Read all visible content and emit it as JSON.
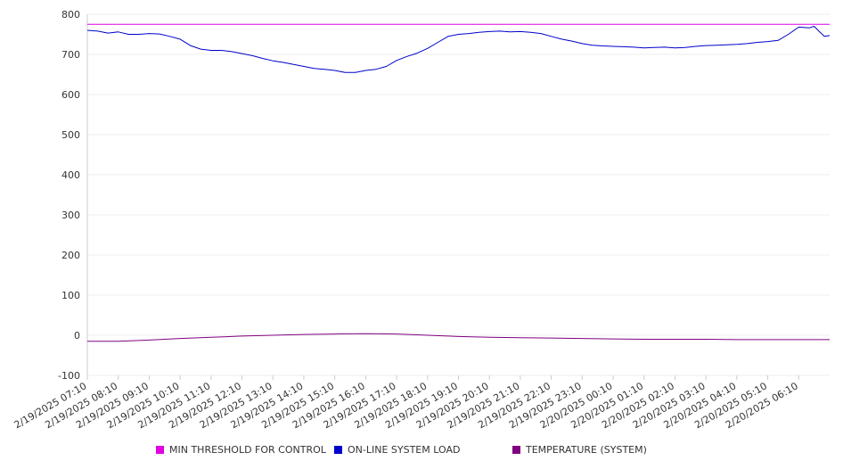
{
  "chart_data": {
    "type": "line",
    "ylim": [
      -100,
      800
    ],
    "y_ticks": [
      800,
      700,
      600,
      500,
      400,
      300,
      200,
      100,
      0,
      -100
    ],
    "y_tick_labels": [
      "800",
      "700",
      "600",
      "500",
      "400",
      "300",
      "200",
      "100",
      "0",
      "-100"
    ],
    "x_categories": [
      "2/19/2025 07:10",
      "2/19/2025 08:10",
      "2/19/2025 09:10",
      "2/19/2025 10:10",
      "2/19/2025 11:10",
      "2/19/2025 12:10",
      "2/19/2025 13:10",
      "2/19/2025 14:10",
      "2/19/2025 15:10",
      "2/19/2025 16:10",
      "2/19/2025 17:10",
      "2/19/2025 18:10",
      "2/19/2025 19:10",
      "2/19/2025 20:10",
      "2/19/2025 21:10",
      "2/19/2025 22:10",
      "2/19/2025 23:10",
      "2/20/2025 00:10",
      "2/20/2025 01:10",
      "2/20/2025 02:10",
      "2/20/2025 03:10",
      "2/20/2025 04:10",
      "2/20/2025 05:10",
      "2/20/2025 06:10"
    ],
    "x_end": "2/20/2025 07:10",
    "grid": "horizontal",
    "legend_position": "bottom",
    "series": [
      {
        "name": "MIN THRESHOLD FOR CONTROL",
        "color": "#e000e0",
        "points": [
          [
            "2/19/2025 07:10",
            775
          ],
          [
            "2/20/2025 07:10",
            775
          ]
        ]
      },
      {
        "name": "ON-LINE SYSTEM LOAD",
        "color": "#0000cc",
        "points": [
          [
            "2/19/2025 07:10",
            760
          ],
          [
            "2/19/2025 07:30",
            758
          ],
          [
            "2/19/2025 07:50",
            753
          ],
          [
            "2/19/2025 08:10",
            756
          ],
          [
            "2/19/2025 08:30",
            750
          ],
          [
            "2/19/2025 08:50",
            750
          ],
          [
            "2/19/2025 09:10",
            752
          ],
          [
            "2/19/2025 09:30",
            751
          ],
          [
            "2/19/2025 09:50",
            745
          ],
          [
            "2/19/2025 10:10",
            738
          ],
          [
            "2/19/2025 10:30",
            722
          ],
          [
            "2/19/2025 10:50",
            713
          ],
          [
            "2/19/2025 11:10",
            710
          ],
          [
            "2/19/2025 11:30",
            710
          ],
          [
            "2/19/2025 11:50",
            707
          ],
          [
            "2/19/2025 12:10",
            702
          ],
          [
            "2/19/2025 12:30",
            697
          ],
          [
            "2/19/2025 12:50",
            690
          ],
          [
            "2/19/2025 13:10",
            684
          ],
          [
            "2/19/2025 13:30",
            680
          ],
          [
            "2/19/2025 13:50",
            675
          ],
          [
            "2/19/2025 14:10",
            670
          ],
          [
            "2/19/2025 14:30",
            665
          ],
          [
            "2/19/2025 14:50",
            663
          ],
          [
            "2/19/2025 15:10",
            660
          ],
          [
            "2/19/2025 15:30",
            655
          ],
          [
            "2/19/2025 15:50",
            655
          ],
          [
            "2/19/2025 16:10",
            660
          ],
          [
            "2/19/2025 16:30",
            663
          ],
          [
            "2/19/2025 16:50",
            670
          ],
          [
            "2/19/2025 17:10",
            685
          ],
          [
            "2/19/2025 17:30",
            695
          ],
          [
            "2/19/2025 17:50",
            703
          ],
          [
            "2/19/2025 18:10",
            715
          ],
          [
            "2/19/2025 18:30",
            730
          ],
          [
            "2/19/2025 18:50",
            745
          ],
          [
            "2/19/2025 19:10",
            750
          ],
          [
            "2/19/2025 19:30",
            752
          ],
          [
            "2/19/2025 19:50",
            755
          ],
          [
            "2/19/2025 20:10",
            757
          ],
          [
            "2/19/2025 20:30",
            758
          ],
          [
            "2/19/2025 20:50",
            756
          ],
          [
            "2/19/2025 21:10",
            757
          ],
          [
            "2/19/2025 21:30",
            755
          ],
          [
            "2/19/2025 21:50",
            752
          ],
          [
            "2/19/2025 22:10",
            745
          ],
          [
            "2/19/2025 22:30",
            738
          ],
          [
            "2/19/2025 22:50",
            733
          ],
          [
            "2/19/2025 23:10",
            727
          ],
          [
            "2/19/2025 23:30",
            723
          ],
          [
            "2/19/2025 23:50",
            721
          ],
          [
            "2/20/2025 00:10",
            720
          ],
          [
            "2/20/2025 00:30",
            719
          ],
          [
            "2/20/2025 00:50",
            718
          ],
          [
            "2/20/2025 01:10",
            716
          ],
          [
            "2/20/2025 01:30",
            717
          ],
          [
            "2/20/2025 01:50",
            718
          ],
          [
            "2/20/2025 02:10",
            716
          ],
          [
            "2/20/2025 02:30",
            717
          ],
          [
            "2/20/2025 02:50",
            720
          ],
          [
            "2/20/2025 03:10",
            722
          ],
          [
            "2/20/2025 03:30",
            723
          ],
          [
            "2/20/2025 03:50",
            724
          ],
          [
            "2/20/2025 04:10",
            725
          ],
          [
            "2/20/2025 04:30",
            727
          ],
          [
            "2/20/2025 04:50",
            730
          ],
          [
            "2/20/2025 05:10",
            732
          ],
          [
            "2/20/2025 05:30",
            735
          ],
          [
            "2/20/2025 05:50",
            750
          ],
          [
            "2/20/2025 06:10",
            768
          ],
          [
            "2/20/2025 06:30",
            766
          ],
          [
            "2/20/2025 06:40",
            770
          ],
          [
            "2/20/2025 06:50",
            757
          ],
          [
            "2/20/2025 07:00",
            745
          ],
          [
            "2/20/2025 07:10",
            747
          ]
        ]
      },
      {
        "name": "TEMPERATURE (SYSTEM)",
        "color": "#800080",
        "points": [
          [
            "2/19/2025 07:10",
            -15
          ],
          [
            "2/19/2025 08:10",
            -15
          ],
          [
            "2/19/2025 09:10",
            -12
          ],
          [
            "2/19/2025 10:10",
            -8
          ],
          [
            "2/19/2025 11:10",
            -5
          ],
          [
            "2/19/2025 12:10",
            -2
          ],
          [
            "2/19/2025 13:10",
            0
          ],
          [
            "2/19/2025 14:10",
            2
          ],
          [
            "2/19/2025 15:10",
            3
          ],
          [
            "2/19/2025 16:10",
            4
          ],
          [
            "2/19/2025 17:10",
            3
          ],
          [
            "2/19/2025 18:10",
            0
          ],
          [
            "2/19/2025 19:10",
            -3
          ],
          [
            "2/19/2025 20:10",
            -5
          ],
          [
            "2/19/2025 21:10",
            -6
          ],
          [
            "2/19/2025 22:10",
            -7
          ],
          [
            "2/19/2025 23:10",
            -8
          ],
          [
            "2/20/2025 00:10",
            -9
          ],
          [
            "2/20/2025 01:10",
            -10
          ],
          [
            "2/20/2025 02:10",
            -10
          ],
          [
            "2/20/2025 03:10",
            -10
          ],
          [
            "2/20/2025 04:10",
            -11
          ],
          [
            "2/20/2025 05:10",
            -11
          ],
          [
            "2/20/2025 06:10",
            -11
          ],
          [
            "2/20/2025 07:10",
            -11
          ]
        ]
      }
    ]
  }
}
